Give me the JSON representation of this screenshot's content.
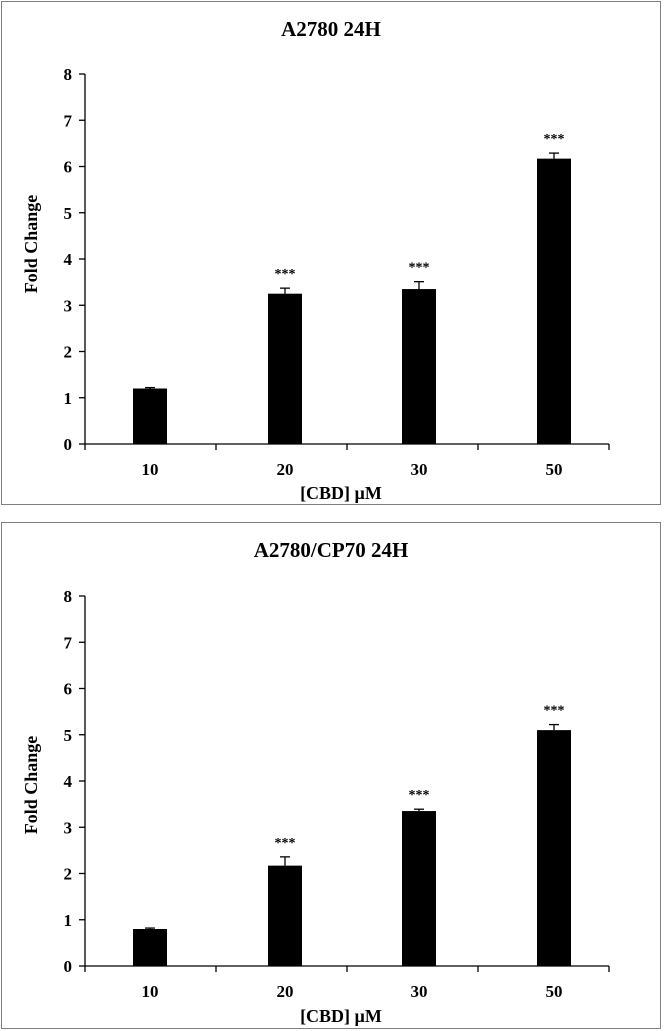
{
  "chart_data": [
    {
      "type": "bar",
      "title": "A2780 24H",
      "xlabel": "[CBD] µM",
      "ylabel": "Fold Change",
      "categories": [
        "10",
        "20",
        "30",
        "50"
      ],
      "values": [
        1.2,
        3.25,
        3.35,
        6.17
      ],
      "errors": [
        0.02,
        0.12,
        0.16,
        0.12
      ],
      "significance": [
        "",
        "***",
        "***",
        "***"
      ],
      "ylim": [
        0,
        8
      ],
      "yticks": [
        0,
        1,
        2,
        3,
        4,
        5,
        6,
        7,
        8
      ],
      "grid": false,
      "bar_color": "#000000"
    },
    {
      "type": "bar",
      "title": "A2780/CP70 24H",
      "xlabel": "[CBD] µM",
      "ylabel": "Fold Change",
      "categories": [
        "10",
        "20",
        "30",
        "50"
      ],
      "values": [
        0.8,
        2.17,
        3.35,
        5.1
      ],
      "errors": [
        0.02,
        0.19,
        0.04,
        0.12
      ],
      "significance": [
        "",
        "***",
        "***",
        "***"
      ],
      "ylim": [
        0,
        8
      ],
      "yticks": [
        0,
        1,
        2,
        3,
        4,
        5,
        6,
        7,
        8
      ],
      "grid": false,
      "bar_color": "#000000"
    }
  ]
}
